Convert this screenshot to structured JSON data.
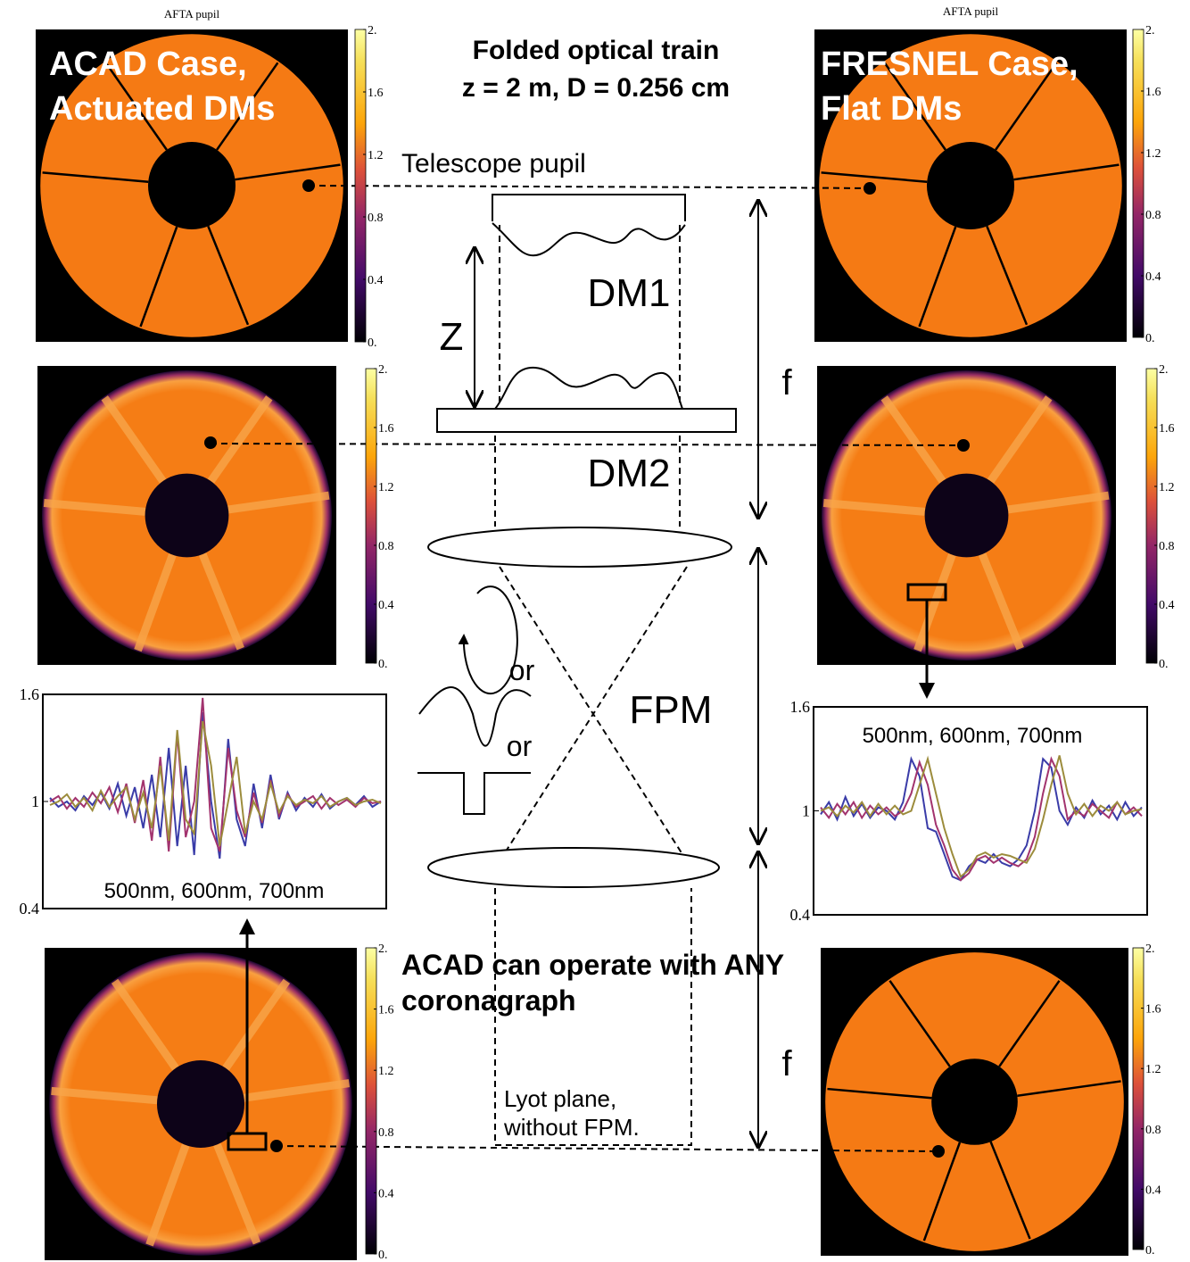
{
  "panel_titles": [
    "AFTA pupil",
    "AFTA pupil"
  ],
  "case_labels": [
    [
      "ACAD Case,",
      "Actuated DMs"
    ],
    [
      "FRESNEL Case,",
      "Flat DMs"
    ]
  ],
  "header": [
    "Folded optical train",
    "z = 2 m, D = 0.256 cm"
  ],
  "labels": {
    "telescope_pupil": "Telescope pupil",
    "dm1": "DM1",
    "dm2": "DM2",
    "z": "Z",
    "f_upper": "f",
    "f_lower": "f",
    "or_1": "or",
    "or_2": "or",
    "fpm": "FPM",
    "lyot": [
      "Lyot plane,",
      "without FPM."
    ]
  },
  "footer": [
    "ACAD can operate with ANY",
    "coronagraph"
  ],
  "colorbar": {
    "ticks": [
      {
        "value": 0,
        "label": "0."
      },
      {
        "value": 0.4,
        "label": "0.4"
      },
      {
        "value": 0.8,
        "label": "0.8"
      },
      {
        "value": 1.2,
        "label": "1.2"
      },
      {
        "value": 1.6,
        "label": "1.6"
      },
      {
        "value": 2,
        "label": "2."
      }
    ],
    "lim": [
      0,
      2
    ]
  },
  "chart_data": [
    {
      "type": "line",
      "caption": "500nm, 600nm, 700nm",
      "ylim": [
        0.4,
        1.6
      ],
      "yticks": [
        1.6,
        1,
        0.4
      ],
      "series": [
        {
          "color": "#3a3ca8",
          "values": [
            1.02,
            0.97,
            1.0,
            0.95,
            1.03,
            0.98,
            1.05,
            0.96,
            1.1,
            0.92,
            1.08,
            0.85,
            1.15,
            0.8,
            1.3,
            0.75,
            1.2,
            0.7,
            1.5,
            1.0,
            0.68,
            1.35,
            0.9,
            0.75,
            1.1,
            0.85,
            1.15,
            0.9,
            1.05,
            0.95,
            1.02,
            0.97,
            1.04,
            0.96,
            1.0,
            1.02,
            0.98,
            1.03,
            0.97,
            1.0
          ]
        },
        {
          "color": "#a2336e",
          "values": [
            1.0,
            1.03,
            0.96,
            1.02,
            0.97,
            1.05,
            0.99,
            1.08,
            0.94,
            1.1,
            0.88,
            1.12,
            0.78,
            1.25,
            0.72,
            1.38,
            0.8,
            1.0,
            1.58,
            0.85,
            0.72,
            1.3,
            0.95,
            0.8,
            1.05,
            0.88,
            1.12,
            0.92,
            1.04,
            0.97,
            1.0,
            1.03,
            0.96,
            1.02,
            0.98,
            1.01,
            0.97,
            1.02,
            0.99,
            1.0
          ]
        },
        {
          "color": "#9c8c3c",
          "values": [
            0.98,
            1.0,
            1.04,
            0.97,
            1.02,
            0.95,
            1.06,
            0.97,
            1.03,
            1.08,
            0.9,
            1.05,
            0.85,
            1.2,
            0.78,
            1.4,
            0.9,
            0.82,
            1.45,
            1.2,
            0.75,
            1.0,
            1.25,
            0.82,
            1.0,
            0.9,
            1.1,
            0.94,
            1.03,
            0.98,
            1.01,
            0.99,
            1.03,
            0.97,
            1.0,
            1.02,
            0.98,
            1.0,
            1.01,
            0.99
          ]
        }
      ]
    },
    {
      "type": "line",
      "caption": "500nm, 600nm, 700nm",
      "ylim": [
        0.4,
        1.6
      ],
      "yticks": [
        1.6,
        1,
        0.4
      ],
      "series": [
        {
          "color": "#3a3ca8",
          "values": [
            0.98,
            1.05,
            0.95,
            1.08,
            0.97,
            1.04,
            0.96,
            1.02,
            1.0,
            0.95,
            1.05,
            1.3,
            1.2,
            0.9,
            0.88,
            0.75,
            0.62,
            0.6,
            0.68,
            0.72,
            0.7,
            0.75,
            0.7,
            0.68,
            0.72,
            0.8,
            1.0,
            1.3,
            1.25,
            1.0,
            0.92,
            1.02,
            0.96,
            1.06,
            0.98,
            1.03,
            0.95,
            1.05,
            0.97,
            1.02
          ]
        },
        {
          "color": "#a2336e",
          "values": [
            1.02,
            0.96,
            1.04,
            0.98,
            1.05,
            0.96,
            1.03,
            0.98,
            1.02,
            0.97,
            1.0,
            1.1,
            1.28,
            1.15,
            0.92,
            0.8,
            0.66,
            0.6,
            0.64,
            0.72,
            0.74,
            0.7,
            0.73,
            0.7,
            0.68,
            0.72,
            0.85,
            1.1,
            1.3,
            1.2,
            0.95,
            1.0,
            0.97,
            1.04,
            1.0,
            0.96,
            1.05,
            0.98,
            1.02,
            0.97
          ]
        },
        {
          "color": "#9c8c3c",
          "values": [
            1.0,
            1.02,
            0.97,
            1.03,
            0.99,
            1.05,
            0.97,
            1.04,
            0.98,
            1.03,
            0.98,
            1.0,
            1.15,
            1.3,
            1.1,
            0.9,
            0.75,
            0.62,
            0.66,
            0.74,
            0.76,
            0.73,
            0.75,
            0.74,
            0.72,
            0.7,
            0.78,
            0.95,
            1.15,
            1.32,
            1.1,
            0.98,
            1.04,
            0.97,
            1.03,
            1.0,
            1.05,
            0.98,
            1.0,
            1.01
          ]
        }
      ]
    }
  ]
}
